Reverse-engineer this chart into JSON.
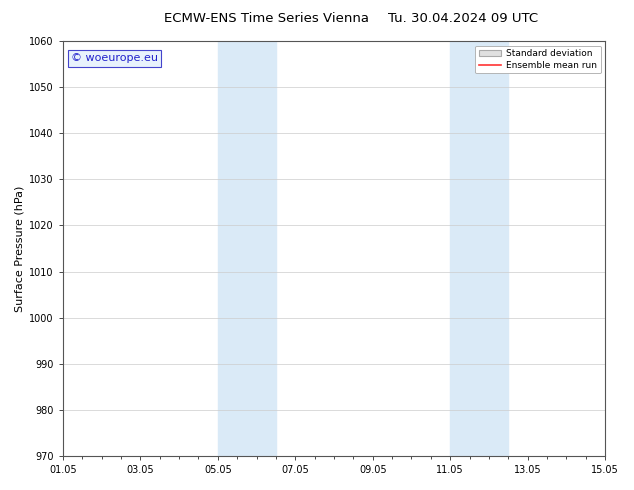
{
  "title_left": "ECMW-ENS Time Series Vienna",
  "title_right": "Tu. 30.04.2024 09 UTC",
  "ylabel": "Surface Pressure (hPa)",
  "ylim": [
    970,
    1060
  ],
  "yticks": [
    970,
    980,
    990,
    1000,
    1010,
    1020,
    1030,
    1040,
    1050,
    1060
  ],
  "xtick_labels": [
    "01.05",
    "03.05",
    "05.05",
    "07.05",
    "09.05",
    "11.05",
    "13.05",
    "15.05"
  ],
  "xtick_positions": [
    0,
    2,
    4,
    6,
    8,
    10,
    12,
    14
  ],
  "x_start": 0,
  "x_end": 14,
  "shaded_bands": [
    {
      "x_start": 4,
      "x_end": 5.5
    },
    {
      "x_start": 10,
      "x_end": 11.5
    }
  ],
  "shade_color": "#daeaf7",
  "watermark_text": "© woeurope.eu",
  "watermark_color": "#2222cc",
  "watermark_bg": "#e8f2fc",
  "watermark_border": "#4444cc",
  "bg_color": "#ffffff",
  "plot_bg_color": "#ffffff",
  "grid_color": "#cccccc",
  "legend_sd_color": "#e0e0e0",
  "legend_sd_edge": "#aaaaaa",
  "legend_mean_color": "#ff3333",
  "title_fontsize": 9.5,
  "tick_fontsize": 7,
  "ylabel_fontsize": 8,
  "watermark_fontsize": 8
}
